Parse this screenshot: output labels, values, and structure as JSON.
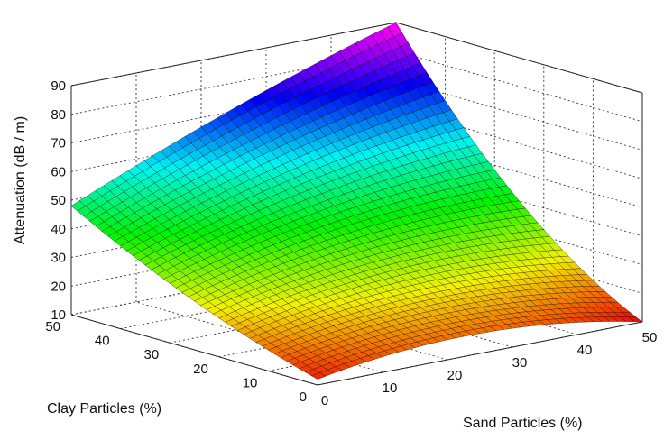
{
  "chart_data": {
    "type": "surface",
    "title": "",
    "xlabel": "Sand Particles (%)",
    "ylabel": "Clay Particles (%)",
    "zlabel": "Attenuation (dB / m)",
    "xlim": [
      0,
      50
    ],
    "ylim": [
      0,
      50
    ],
    "zlim": [
      10,
      90
    ],
    "x_ticks": [
      "0",
      "10",
      "20",
      "30",
      "40",
      "50"
    ],
    "y_ticks": [
      "0",
      "10",
      "20",
      "30",
      "40",
      "50"
    ],
    "z_ticks": [
      "10",
      "20",
      "30",
      "40",
      "50",
      "60",
      "70",
      "80",
      "90"
    ],
    "grid": true,
    "colormap": "hsv",
    "mesh_color": "#000000",
    "corners": [
      {
        "sand": 0,
        "clay": 0,
        "attenuation": 12
      },
      {
        "sand": 50,
        "clay": 0,
        "attenuation": 10
      },
      {
        "sand": 0,
        "clay": 50,
        "attenuation": 48
      },
      {
        "sand": 50,
        "clay": 50,
        "attenuation": 90
      }
    ],
    "mid_edges": [
      {
        "sand": 25,
        "clay": 0,
        "attenuation": 17
      },
      {
        "sand": 50,
        "clay": 25,
        "attenuation": 40
      },
      {
        "sand": 0,
        "clay": 25,
        "attenuation": 27
      },
      {
        "sand": 25,
        "clay": 50,
        "attenuation": 71
      }
    ],
    "center": {
      "sand": 25,
      "clay": 25,
      "attenuation": 38
    }
  }
}
